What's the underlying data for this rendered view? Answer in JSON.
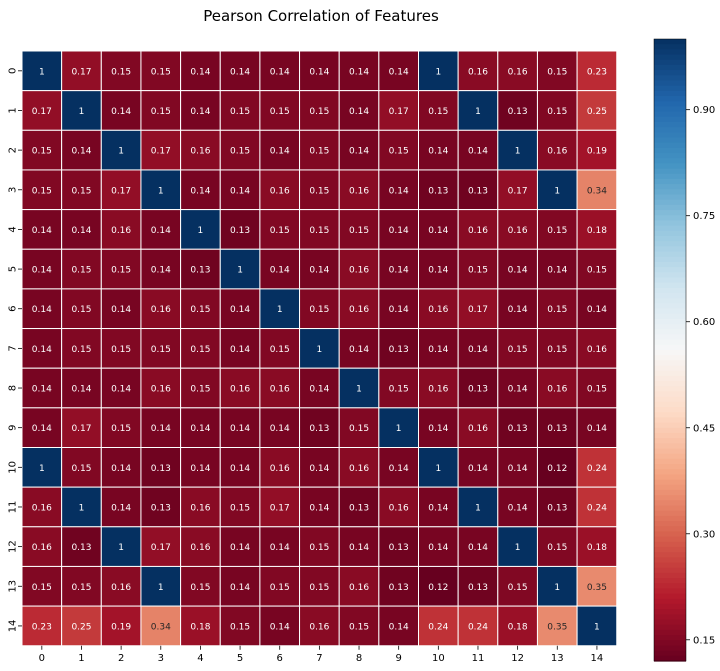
{
  "chart_data": {
    "type": "heatmap",
    "title": "Pearson Correlation of Features",
    "x_labels": [
      "0",
      "1",
      "2",
      "3",
      "4",
      "5",
      "6",
      "7",
      "8",
      "9",
      "10",
      "11",
      "12",
      "13",
      "14"
    ],
    "y_labels": [
      "0",
      "1",
      "2",
      "3",
      "4",
      "5",
      "6",
      "7",
      "8",
      "9",
      "10",
      "11",
      "12",
      "13",
      "14"
    ],
    "values": [
      [
        1,
        0.17,
        0.15,
        0.15,
        0.14,
        0.14,
        0.14,
        0.14,
        0.14,
        0.14,
        1,
        0.16,
        0.16,
        0.15,
        0.23
      ],
      [
        0.17,
        1,
        0.14,
        0.15,
        0.14,
        0.15,
        0.15,
        0.15,
        0.14,
        0.17,
        0.15,
        1,
        0.13,
        0.15,
        0.25
      ],
      [
        0.15,
        0.14,
        1,
        0.17,
        0.16,
        0.15,
        0.14,
        0.15,
        0.14,
        0.15,
        0.14,
        0.14,
        1,
        0.16,
        0.19
      ],
      [
        0.15,
        0.15,
        0.17,
        1,
        0.14,
        0.14,
        0.16,
        0.15,
        0.16,
        0.14,
        0.13,
        0.13,
        0.17,
        1,
        0.34
      ],
      [
        0.14,
        0.14,
        0.16,
        0.14,
        1,
        0.13,
        0.15,
        0.15,
        0.15,
        0.14,
        0.14,
        0.16,
        0.16,
        0.15,
        0.18
      ],
      [
        0.14,
        0.15,
        0.15,
        0.14,
        0.13,
        1,
        0.14,
        0.14,
        0.16,
        0.14,
        0.14,
        0.15,
        0.14,
        0.14,
        0.15
      ],
      [
        0.14,
        0.15,
        0.14,
        0.16,
        0.15,
        0.14,
        1,
        0.15,
        0.16,
        0.14,
        0.16,
        0.17,
        0.14,
        0.15,
        0.14
      ],
      [
        0.14,
        0.15,
        0.15,
        0.15,
        0.15,
        0.14,
        0.15,
        1,
        0.14,
        0.13,
        0.14,
        0.14,
        0.15,
        0.15,
        0.16
      ],
      [
        0.14,
        0.14,
        0.14,
        0.16,
        0.15,
        0.16,
        0.16,
        0.14,
        1,
        0.15,
        0.16,
        0.13,
        0.14,
        0.16,
        0.15
      ],
      [
        0.14,
        0.17,
        0.15,
        0.14,
        0.14,
        0.14,
        0.14,
        0.13,
        0.15,
        1,
        0.14,
        0.16,
        0.13,
        0.13,
        0.14
      ],
      [
        1,
        0.15,
        0.14,
        0.13,
        0.14,
        0.14,
        0.16,
        0.14,
        0.16,
        0.14,
        1,
        0.14,
        0.14,
        0.12,
        0.24
      ],
      [
        0.16,
        1,
        0.14,
        0.13,
        0.16,
        0.15,
        0.17,
        0.14,
        0.13,
        0.16,
        0.14,
        1,
        0.14,
        0.13,
        0.24
      ],
      [
        0.16,
        0.13,
        1,
        0.17,
        0.16,
        0.14,
        0.14,
        0.15,
        0.14,
        0.13,
        0.14,
        0.14,
        1,
        0.15,
        0.18
      ],
      [
        0.15,
        0.15,
        0.16,
        1,
        0.15,
        0.14,
        0.15,
        0.15,
        0.16,
        0.13,
        0.12,
        0.13,
        0.15,
        1,
        0.35
      ],
      [
        0.23,
        0.25,
        0.19,
        0.34,
        0.18,
        0.15,
        0.14,
        0.16,
        0.15,
        0.14,
        0.24,
        0.24,
        0.18,
        0.35,
        1
      ]
    ],
    "colormap": "RdBu",
    "colormap_stops": [
      "#67001f",
      "#b2182b",
      "#d6604d",
      "#f4a582",
      "#fddbc7",
      "#f7f7f7",
      "#d1e5f0",
      "#92c5de",
      "#4393c3",
      "#2166ac",
      "#053061"
    ],
    "vmin": 0.12,
    "vmax": 1.0,
    "colorbar_ticks": [
      "0.15",
      "0.30",
      "0.45",
      "0.60",
      "0.75",
      "0.90"
    ],
    "cell_border_color": "#ffffff",
    "annot_light_text": "#ffffff",
    "annot_dark_text": "#262626"
  }
}
